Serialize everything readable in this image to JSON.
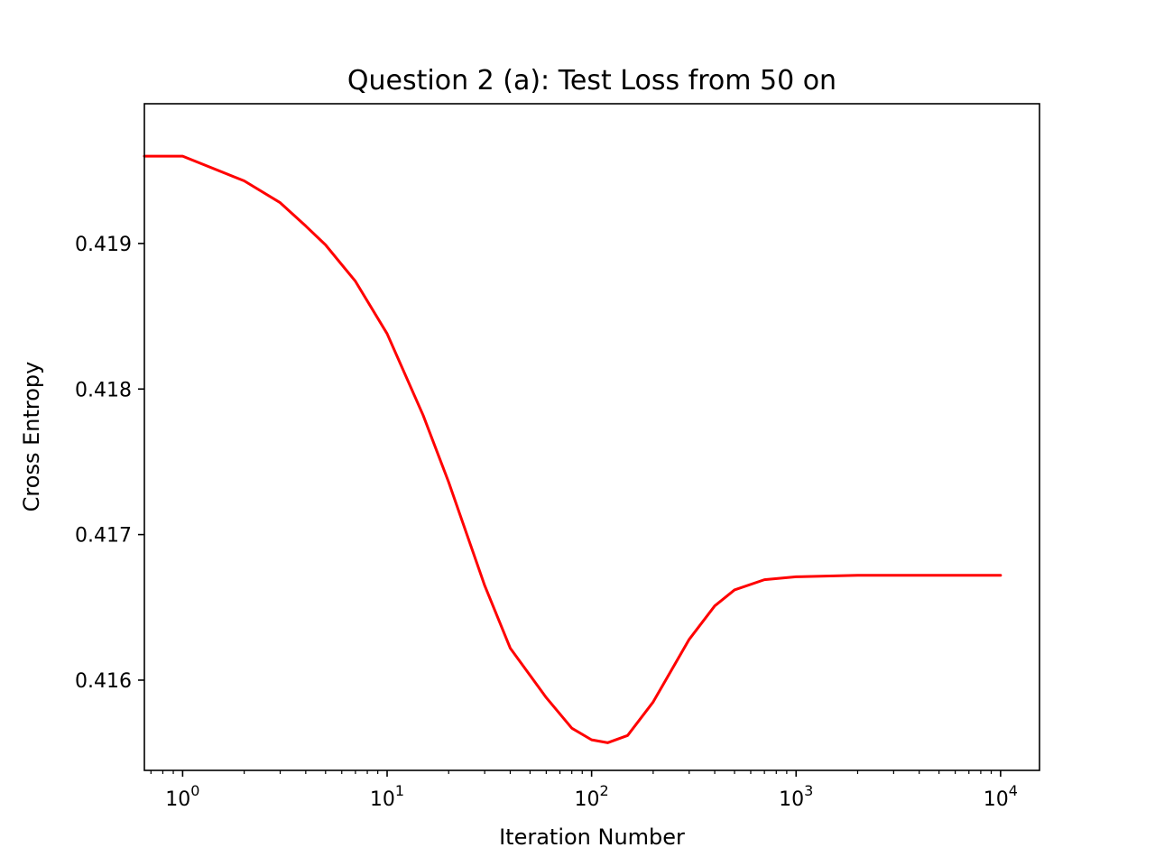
{
  "chart_data": {
    "type": "line",
    "title": "Question 2 (a): Test Loss from 50 on",
    "xlabel": "Iteration Number",
    "ylabel": "Cross Entropy",
    "xscale": "log",
    "xlim": [
      0.65,
      15500
    ],
    "ylim": [
      0.41538,
      0.41996
    ],
    "grid": false,
    "legend": "none",
    "line_color": "#ff0000",
    "x_ticks": [
      {
        "base": "10",
        "exp": "0",
        "value": 1
      },
      {
        "base": "10",
        "exp": "1",
        "value": 10
      },
      {
        "base": "10",
        "exp": "2",
        "value": 100
      },
      {
        "base": "10",
        "exp": "3",
        "value": 1000
      },
      {
        "base": "10",
        "exp": "4",
        "value": 10000
      }
    ],
    "y_ticks": [
      {
        "label": "0.416",
        "value": 0.416
      },
      {
        "label": "0.417",
        "value": 0.417
      },
      {
        "label": "0.418",
        "value": 0.418
      },
      {
        "label": "0.419",
        "value": 0.419
      }
    ],
    "series": [
      {
        "x": [
          0.65,
          1,
          2,
          3,
          4,
          5,
          7,
          10,
          15,
          20,
          30,
          40,
          60,
          80,
          100,
          120,
          150,
          200,
          300,
          400,
          500,
          700,
          1000,
          2000,
          5000,
          10000
        ],
        "y": [
          0.4196,
          0.4196,
          0.41943,
          0.41928,
          0.41912,
          0.41899,
          0.41874,
          0.41838,
          0.41782,
          0.41736,
          0.41665,
          0.41622,
          0.41588,
          0.41567,
          0.41559,
          0.41557,
          0.41562,
          0.41585,
          0.41628,
          0.41651,
          0.41662,
          0.41669,
          0.41671,
          0.41672,
          0.41672,
          0.41672
        ]
      }
    ]
  }
}
